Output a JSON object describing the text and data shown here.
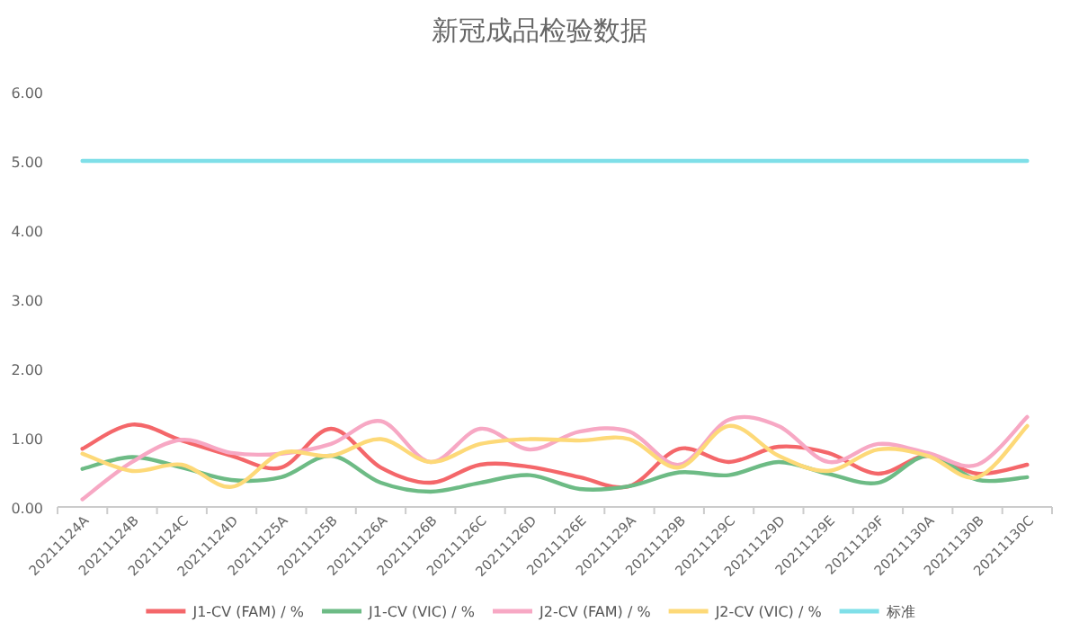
{
  "chart_data": {
    "type": "line",
    "title": "新冠成品检验数据",
    "categories": [
      "20211124A",
      "20211124B",
      "20211124C",
      "20211124D",
      "20211125A",
      "20211125B",
      "20211126A",
      "20211126B",
      "20211126C",
      "20211126D",
      "20211126E",
      "20211129A",
      "20211129B",
      "20211129C",
      "20211129D",
      "20211129E",
      "20211129F",
      "20211130A",
      "20211130B",
      "20211130C"
    ],
    "series": [
      {
        "name": "J1-CV (FAM) / %",
        "color": "#f4676a",
        "values": [
          0.84,
          1.19,
          0.96,
          0.74,
          0.57,
          1.13,
          0.57,
          0.35,
          0.61,
          0.58,
          0.43,
          0.3,
          0.84,
          0.65,
          0.87,
          0.78,
          0.48,
          0.74,
          0.48,
          0.61
        ]
      },
      {
        "name": "J1-CV (VIC) / %",
        "color": "#6dbb85",
        "values": [
          0.55,
          0.72,
          0.57,
          0.39,
          0.43,
          0.74,
          0.35,
          0.22,
          0.35,
          0.46,
          0.26,
          0.3,
          0.5,
          0.46,
          0.65,
          0.48,
          0.35,
          0.74,
          0.39,
          0.43
        ]
      },
      {
        "name": "J2-CV (FAM) / %",
        "color": "#f7a8c4",
        "values": [
          0.11,
          0.65,
          0.97,
          0.78,
          0.77,
          0.91,
          1.24,
          0.65,
          1.13,
          0.83,
          1.09,
          1.09,
          0.61,
          1.26,
          1.17,
          0.65,
          0.91,
          0.78,
          0.61,
          1.3
        ]
      },
      {
        "name": "J2-CV (VIC) / %",
        "color": "#fdd978",
        "values": [
          0.77,
          0.52,
          0.61,
          0.29,
          0.78,
          0.74,
          0.98,
          0.65,
          0.91,
          0.98,
          0.96,
          0.98,
          0.57,
          1.17,
          0.74,
          0.52,
          0.83,
          0.74,
          0.43,
          1.17
        ]
      },
      {
        "name": "标准",
        "color": "#7fdfe8",
        "values": [
          5,
          5,
          5,
          5,
          5,
          5,
          5,
          5,
          5,
          5,
          5,
          5,
          5,
          5,
          5,
          5,
          5,
          5,
          5,
          5
        ]
      }
    ],
    "ylim": [
      0,
      6
    ],
    "yticks": [
      {
        "value": 0,
        "label": "0.00"
      },
      {
        "value": 1,
        "label": "1.00"
      },
      {
        "value": 2,
        "label": "2.00"
      },
      {
        "value": 3,
        "label": "3.00"
      },
      {
        "value": 4,
        "label": "4.00"
      },
      {
        "value": 5,
        "label": "5.00"
      },
      {
        "value": 6,
        "label": "6.00"
      }
    ],
    "grid": false,
    "legend": "bottom",
    "marker": "none",
    "line_style": "solid"
  }
}
